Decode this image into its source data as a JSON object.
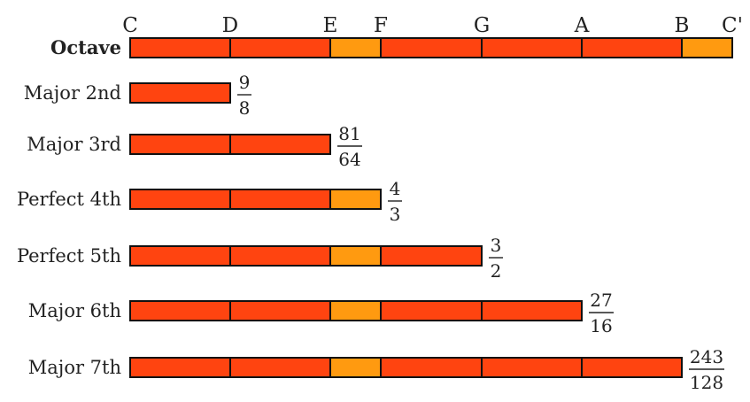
{
  "notes": [
    "C",
    "D",
    "E",
    "F",
    "G",
    "A",
    "B",
    "C'"
  ],
  "colors": {
    "whole_tone": "#ff4410",
    "semitone": "#ff9a10",
    "outline": "#111111"
  },
  "segments": [
    "whole",
    "whole",
    "semi",
    "whole",
    "whole",
    "whole",
    "semi"
  ],
  "rows": [
    {
      "label": "Octave",
      "bold": true,
      "steps": 7,
      "ratio": null
    },
    {
      "label": "Major 2nd",
      "bold": false,
      "steps": 1,
      "ratio": {
        "numerator": "9",
        "denominator": "8"
      }
    },
    {
      "label": "Major 3rd",
      "bold": false,
      "steps": 2,
      "ratio": {
        "numerator": "81",
        "denominator": "64"
      }
    },
    {
      "label": "Perfect 4th",
      "bold": false,
      "steps": 3,
      "ratio": {
        "numerator": "4",
        "denominator": "3"
      }
    },
    {
      "label": "Perfect 5th",
      "bold": false,
      "steps": 4,
      "ratio": {
        "numerator": "3",
        "denominator": "2"
      }
    },
    {
      "label": "Major 6th",
      "bold": false,
      "steps": 5,
      "ratio": {
        "numerator": "27",
        "denominator": "16"
      }
    },
    {
      "label": "Major 7th",
      "bold": false,
      "steps": 6,
      "ratio": {
        "numerator": "243",
        "denominator": "128"
      }
    }
  ]
}
